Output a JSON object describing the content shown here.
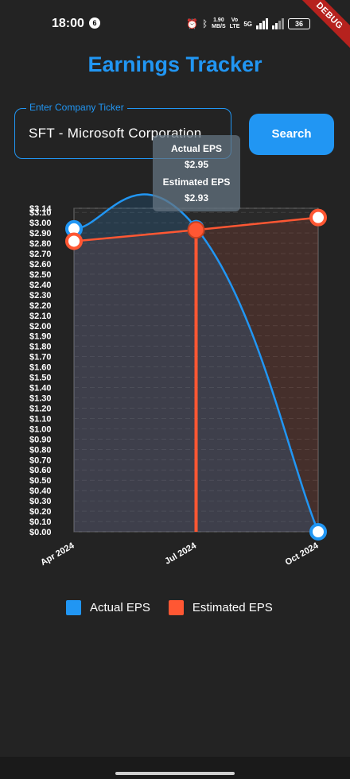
{
  "status_bar": {
    "time": "18:00",
    "notification_count": "6",
    "net_speed": "1.90\nMB/S",
    "volte": "Vo\nLTE",
    "network": "5G",
    "battery": "36"
  },
  "debug_banner": "DEBUG",
  "app": {
    "title": "Earnings Tracker",
    "ticker_label": "Enter Company Ticker",
    "ticker_value": "SFT - Microsoft Corporation",
    "search_label": "Search"
  },
  "tooltip": {
    "actual_label": "Actual EPS",
    "actual_value": "$2.95",
    "estimated_label": "Estimated EPS",
    "estimated_value": "$2.93"
  },
  "colors": {
    "actual": "#2196f3",
    "estimated": "#ff5733",
    "background": "#232323"
  },
  "chart_data": {
    "type": "line",
    "categories": [
      "Apr 2024",
      "Jul 2024",
      "Oct 2024"
    ],
    "series": [
      {
        "name": "Actual EPS",
        "values": [
          2.94,
          2.95,
          0.0
        ],
        "color": "#2196f3"
      },
      {
        "name": "Estimated EPS",
        "values": [
          2.82,
          2.93,
          3.05
        ],
        "color": "#ff5733"
      }
    ],
    "ylim": [
      0,
      3.14
    ],
    "y_ticks": [
      "$0.00",
      "$0.10",
      "$0.20",
      "$0.30",
      "$0.40",
      "$0.50",
      "$0.60",
      "$0.70",
      "$0.80",
      "$0.90",
      "$1.00",
      "$1.10",
      "$1.20",
      "$1.30",
      "$1.40",
      "$1.50",
      "$1.60",
      "$1.70",
      "$1.80",
      "$1.90",
      "$2.00",
      "$2.10",
      "$2.20",
      "$2.30",
      "$2.40",
      "$2.50",
      "$2.60",
      "$2.70",
      "$2.80",
      "$2.90",
      "$3.00",
      "$3.10",
      "$3.14"
    ],
    "highlighted_category": "Jul 2024",
    "grid": true,
    "legend": [
      "Actual EPS",
      "Estimated EPS"
    ],
    "legend_position": "bottom"
  }
}
